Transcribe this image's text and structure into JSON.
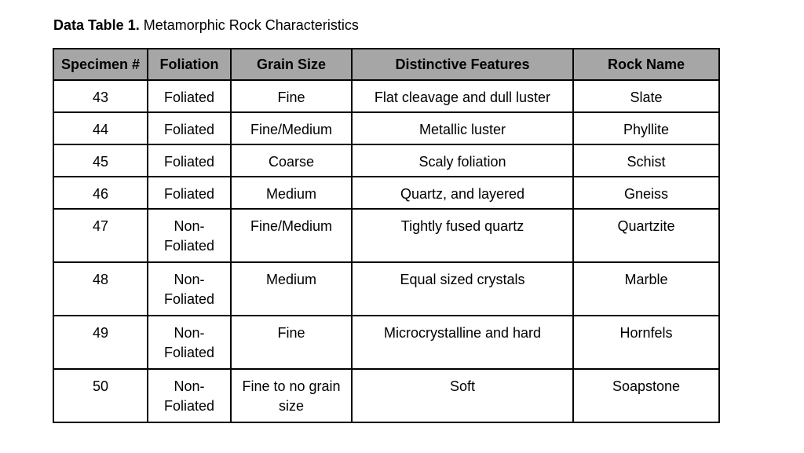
{
  "caption": {
    "lead": "Data Table 1.",
    "title": "Metamorphic Rock Characteristics"
  },
  "table": {
    "headers": [
      "Specimen #",
      "Foliation",
      "Grain Size",
      "Distinctive Features",
      "Rock Name"
    ],
    "rows": [
      [
        "43",
        "Foliated",
        "Fine",
        "Flat cleavage and dull luster",
        "Slate"
      ],
      [
        "44",
        "Foliated",
        "Fine/Medium",
        "Metallic luster",
        "Phyllite"
      ],
      [
        "45",
        "Foliated",
        "Coarse",
        "Scaly foliation",
        "Schist"
      ],
      [
        "46",
        "Foliated",
        "Medium",
        "Quartz, and layered",
        "Gneiss"
      ],
      [
        "47",
        "Non-Foliated",
        "Fine/Medium",
        "Tightly fused quartz",
        "Quartzite"
      ],
      [
        "48",
        "Non-Foliated",
        "Medium",
        "Equal sized crystals",
        "Marble"
      ],
      [
        "49",
        "Non-Foliated",
        "Fine",
        "Microcrystalline and hard",
        "Hornfels"
      ],
      [
        "50",
        "Non-Foliated",
        "Fine to no grain size",
        "Soft",
        "Soapstone"
      ]
    ]
  }
}
